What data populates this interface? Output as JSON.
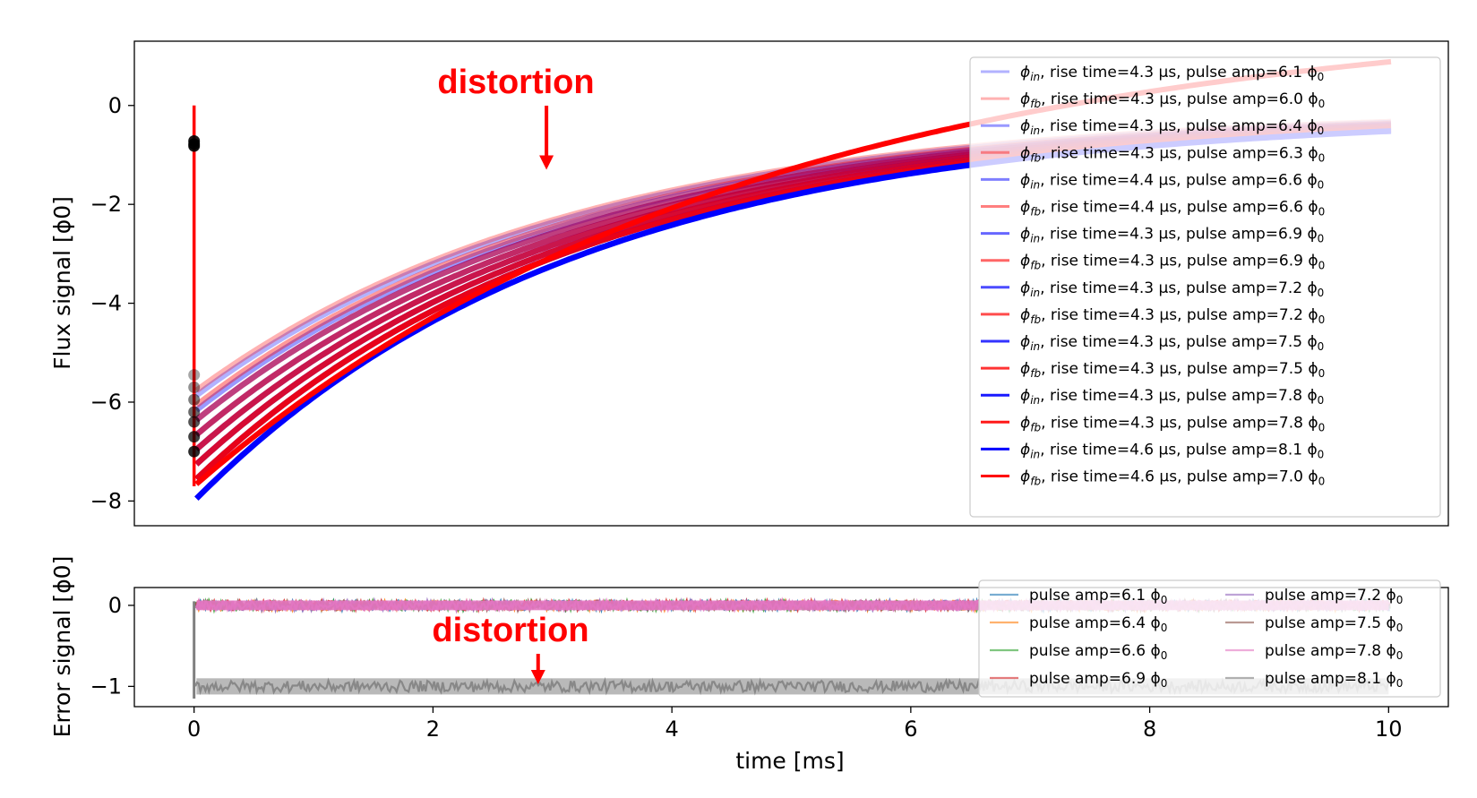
{
  "chart_data": [
    {
      "type": "line",
      "panel": "top",
      "ylabel": "Flux signal [ϕ0]",
      "xlabel": "",
      "xlim": [
        -0.5,
        10.5
      ],
      "ylim": [
        -8.5,
        1.3
      ],
      "yticks": [
        0,
        -2,
        -4,
        -6,
        -8
      ],
      "ytick_labels": [
        "0",
        "−2",
        "−4",
        "−6",
        "−8"
      ],
      "annotation": {
        "text": "distortion",
        "x": 2.95,
        "y": -1.3,
        "arrow": true
      },
      "colors": {
        "in": "#0000ff",
        "fb": "#ff0000",
        "marker": "#000000"
      },
      "series": [
        {
          "kind": "in",
          "sym": "ϕ",
          "sub": "in",
          "text": ", rise time=4.3 μs, pulse amp=6.1 ϕ",
          "tail": "0",
          "rise_time": 4.3,
          "amp": 6.1,
          "start": -5.9,
          "end": -0.35,
          "alpha": 0.3
        },
        {
          "kind": "fb",
          "sym": "ϕ",
          "sub": "fb",
          "text": ", rise time=4.3 μs, pulse amp=6.0 ϕ",
          "tail": "0",
          "rise_time": 4.3,
          "amp": 6.0,
          "start": -5.8,
          "end": -0.33,
          "alpha": 0.3
        },
        {
          "kind": "in",
          "sym": "ϕ",
          "sub": "in",
          "text": ", rise time=4.3 μs, pulse amp=6.4 ϕ",
          "tail": "0",
          "rise_time": 4.3,
          "amp": 6.4,
          "start": -6.2,
          "end": -0.38,
          "alpha": 0.4
        },
        {
          "kind": "fb",
          "sym": "ϕ",
          "sub": "fb",
          "text": ", rise time=4.3 μs, pulse amp=6.3 ϕ",
          "tail": "0",
          "rise_time": 4.3,
          "amp": 6.3,
          "start": -6.1,
          "end": -0.37,
          "alpha": 0.4
        },
        {
          "kind": "in",
          "sym": "ϕ",
          "sub": "in",
          "text": ", rise time=4.4 μs, pulse amp=6.6 ϕ",
          "tail": "0",
          "rise_time": 4.4,
          "amp": 6.6,
          "start": -6.4,
          "end": -0.4,
          "alpha": 0.5
        },
        {
          "kind": "fb",
          "sym": "ϕ",
          "sub": "fb",
          "text": ", rise time=4.4 μs, pulse amp=6.6 ϕ",
          "tail": "0",
          "rise_time": 4.4,
          "amp": 6.6,
          "start": -6.4,
          "end": -0.4,
          "alpha": 0.5
        },
        {
          "kind": "in",
          "sym": "ϕ",
          "sub": "in",
          "text": ", rise time=4.3 μs, pulse amp=6.9 ϕ",
          "tail": "0",
          "rise_time": 4.3,
          "amp": 6.9,
          "start": -6.7,
          "end": -0.42,
          "alpha": 0.6
        },
        {
          "kind": "fb",
          "sym": "ϕ",
          "sub": "fb",
          "text": ", rise time=4.3 μs, pulse amp=6.9 ϕ",
          "tail": "0",
          "rise_time": 4.3,
          "amp": 6.9,
          "start": -6.7,
          "end": -0.42,
          "alpha": 0.6
        },
        {
          "kind": "in",
          "sym": "ϕ",
          "sub": "in",
          "text": ", rise time=4.3 μs, pulse amp=7.2 ϕ",
          "tail": "0",
          "rise_time": 4.3,
          "amp": 7.2,
          "start": -7.0,
          "end": -0.44,
          "alpha": 0.7
        },
        {
          "kind": "fb",
          "sym": "ϕ",
          "sub": "fb",
          "text": ", rise time=4.3 μs, pulse amp=7.2 ϕ",
          "tail": "0",
          "rise_time": 4.3,
          "amp": 7.2,
          "start": -7.0,
          "end": -0.44,
          "alpha": 0.7
        },
        {
          "kind": "in",
          "sym": "ϕ",
          "sub": "in",
          "text": ", rise time=4.3 μs, pulse amp=7.5 ϕ",
          "tail": "0",
          "rise_time": 4.3,
          "amp": 7.5,
          "start": -7.3,
          "end": -0.47,
          "alpha": 0.8
        },
        {
          "kind": "fb",
          "sym": "ϕ",
          "sub": "fb",
          "text": ", rise time=4.3 μs, pulse amp=7.5 ϕ",
          "tail": "0",
          "rise_time": 4.3,
          "amp": 7.5,
          "start": -7.3,
          "end": -0.47,
          "alpha": 0.8
        },
        {
          "kind": "in",
          "sym": "ϕ",
          "sub": "in",
          "text": ", rise time=4.3 μs, pulse amp=7.8 ϕ",
          "tail": "0",
          "rise_time": 4.3,
          "amp": 7.8,
          "start": -7.6,
          "end": -0.5,
          "alpha": 0.9
        },
        {
          "kind": "fb",
          "sym": "ϕ",
          "sub": "fb",
          "text": ", rise time=4.3 μs, pulse amp=7.8 ϕ",
          "tail": "0",
          "rise_time": 4.3,
          "amp": 7.8,
          "start": -7.6,
          "end": -0.5,
          "alpha": 0.9
        },
        {
          "kind": "in",
          "sym": "ϕ",
          "sub": "in",
          "text": ", rise time=4.6 μs, pulse amp=8.1 ϕ",
          "tail": "0",
          "rise_time": 4.6,
          "amp": 8.1,
          "start": -8.0,
          "end": -0.52,
          "alpha": 1.0
        },
        {
          "kind": "fb",
          "sym": "ϕ",
          "sub": "fb",
          "text": ", rise time=4.6 μs, pulse amp=7.0 ϕ",
          "tail": "0",
          "rise_time": 4.6,
          "amp": 7.0,
          "start": -7.7,
          "end": 0.88,
          "alpha": 1.0,
          "distorted": true
        }
      ],
      "markers": {
        "x": 0.0,
        "y": [
          -0.72,
          -0.78,
          -0.82,
          -5.45,
          -5.7,
          -5.95,
          -6.2,
          -6.4,
          -6.7,
          -7.0
        ]
      }
    },
    {
      "type": "line",
      "panel": "bottom",
      "ylabel": "Error signal [ϕ0]",
      "xlabel": "time [ms]",
      "xlim": [
        -0.5,
        10.5
      ],
      "ylim": [
        -1.25,
        0.22
      ],
      "xticks": [
        0,
        2,
        4,
        6,
        8,
        10
      ],
      "xtick_labels": [
        "0",
        "2",
        "4",
        "6",
        "8",
        "10"
      ],
      "yticks": [
        0,
        -1
      ],
      "ytick_labels": [
        "0",
        "−1"
      ],
      "annotation": {
        "text": "distortion",
        "x": 2.88,
        "y": -0.95,
        "arrow": true
      },
      "series": [
        {
          "name": "pulse amp=6.1 ϕ",
          "tail": "0",
          "amp": 6.1,
          "color": "#1f77b4",
          "level": 0.0
        },
        {
          "name": "pulse amp=6.4 ϕ",
          "tail": "0",
          "amp": 6.4,
          "color": "#ff7f0e",
          "level": 0.0
        },
        {
          "name": "pulse amp=6.6 ϕ",
          "tail": "0",
          "amp": 6.6,
          "color": "#2ca02c",
          "level": 0.0
        },
        {
          "name": "pulse amp=6.9 ϕ",
          "tail": "0",
          "amp": 6.9,
          "color": "#d62728",
          "level": 0.0
        },
        {
          "name": "pulse amp=7.2 ϕ",
          "tail": "0",
          "amp": 7.2,
          "color": "#9467bd",
          "level": 0.0
        },
        {
          "name": "pulse amp=7.5 ϕ",
          "tail": "0",
          "amp": 7.5,
          "color": "#8c564b",
          "level": 0.0
        },
        {
          "name": "pulse amp=7.8 ϕ",
          "tail": "0",
          "amp": 7.8,
          "color": "#e377c2",
          "level": 0.0
        },
        {
          "name": "pulse amp=8.1 ϕ",
          "tail": "0",
          "amp": 8.1,
          "color": "#7f7f7f",
          "level": -1.0
        }
      ],
      "legend_columns": 2,
      "legend_location": "top-right"
    }
  ]
}
